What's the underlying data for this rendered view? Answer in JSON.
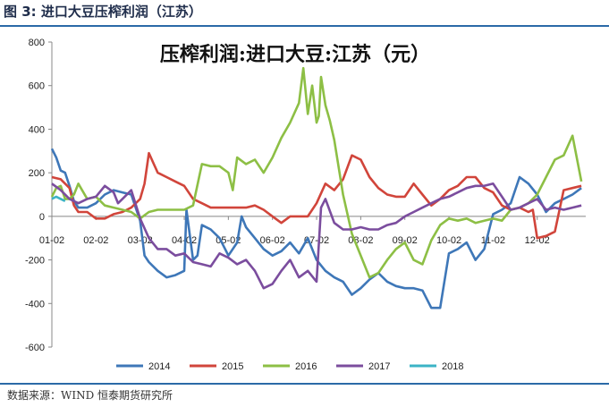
{
  "figure_title": "图 3:  进口大豆压榨利润（江苏）",
  "source": "数据来源：WIND  恒泰期货研究所",
  "chart_data": {
    "type": "line",
    "title": "压榨利润:进口大豆:江苏（元）",
    "xlabel": "",
    "ylabel": "",
    "ylim": [
      -600,
      800
    ],
    "yticks": [
      -600,
      -400,
      -200,
      0,
      200,
      400,
      600,
      800
    ],
    "xlim": [
      0,
      12.1
    ],
    "xticks": [
      {
        "x": 0,
        "label": "01-02"
      },
      {
        "x": 1,
        "label": "02-02"
      },
      {
        "x": 2,
        "label": "03-02"
      },
      {
        "x": 3,
        "label": "04-02"
      },
      {
        "x": 4,
        "label": "05-02"
      },
      {
        "x": 5,
        "label": "06-02"
      },
      {
        "x": 6,
        "label": "07-02"
      },
      {
        "x": 7,
        "label": "08-02"
      },
      {
        "x": 8,
        "label": "09-02"
      },
      {
        "x": 9,
        "label": "10-02"
      },
      {
        "x": 10,
        "label": "11-02"
      },
      {
        "x": 11,
        "label": "12-02"
      }
    ],
    "legend_position": "bottom",
    "grid": false,
    "series": [
      {
        "name": "2014",
        "color": "#3e77b8",
        "x": [
          0.0,
          0.1,
          0.2,
          0.3,
          0.4,
          0.5,
          0.6,
          0.8,
          1.0,
          1.2,
          1.4,
          1.6,
          1.8,
          1.9,
          2.0,
          2.1,
          2.2,
          2.4,
          2.6,
          2.8,
          3.0,
          3.05,
          3.2,
          3.3,
          3.4,
          3.6,
          3.8,
          4.0,
          4.2,
          4.3,
          4.4,
          4.6,
          4.8,
          5.0,
          5.2,
          5.4,
          5.6,
          5.8,
          6.0,
          6.2,
          6.4,
          6.6,
          6.8,
          7.0,
          7.2,
          7.4,
          7.6,
          7.8,
          8.0,
          8.2,
          8.4,
          8.6,
          8.8,
          9.0,
          9.2,
          9.4,
          9.6,
          9.8,
          10.0,
          10.2,
          10.4,
          10.6,
          10.8,
          11.0,
          11.2,
          11.4,
          11.6,
          11.8,
          12.0
        ],
        "y": [
          310,
          270,
          210,
          200,
          140,
          70,
          40,
          40,
          60,
          100,
          120,
          110,
          100,
          40,
          -20,
          -180,
          -210,
          -250,
          -280,
          -270,
          -250,
          30,
          -200,
          -180,
          -40,
          -60,
          -100,
          -180,
          -120,
          0,
          -50,
          -100,
          -150,
          -180,
          -160,
          -120,
          -170,
          -100,
          -200,
          -250,
          -280,
          -300,
          -360,
          -330,
          -290,
          -260,
          -300,
          -320,
          -330,
          -330,
          -340,
          -420,
          -420,
          -170,
          -150,
          -120,
          -200,
          -150,
          10,
          30,
          60,
          180,
          150,
          100,
          20,
          60,
          80,
          100,
          130
        ]
      },
      {
        "name": "2015",
        "color": "#d1453b",
        "x": [
          0.0,
          0.2,
          0.4,
          0.5,
          0.6,
          0.8,
          1.0,
          1.2,
          1.4,
          1.6,
          1.8,
          2.0,
          2.1,
          2.2,
          2.4,
          2.6,
          2.8,
          3.0,
          3.2,
          3.4,
          3.6,
          3.8,
          4.0,
          4.2,
          4.4,
          4.6,
          4.8,
          5.0,
          5.2,
          5.4,
          5.6,
          5.8,
          6.0,
          6.2,
          6.4,
          6.6,
          6.8,
          7.0,
          7.2,
          7.4,
          7.6,
          7.8,
          8.0,
          8.2,
          8.4,
          8.6,
          8.8,
          9.0,
          9.2,
          9.4,
          9.6,
          9.8,
          10.0,
          10.2,
          10.4,
          10.6,
          10.8,
          10.9,
          11.0,
          11.2,
          11.4,
          11.6,
          11.8,
          12.0
        ],
        "y": [
          180,
          170,
          130,
          50,
          20,
          20,
          -10,
          -10,
          10,
          20,
          40,
          80,
          150,
          290,
          200,
          180,
          160,
          140,
          80,
          60,
          40,
          40,
          40,
          40,
          40,
          50,
          30,
          0,
          -30,
          0,
          0,
          0,
          60,
          150,
          120,
          170,
          280,
          260,
          180,
          130,
          100,
          90,
          90,
          150,
          100,
          50,
          80,
          120,
          140,
          180,
          180,
          130,
          110,
          50,
          30,
          40,
          20,
          30,
          -100,
          -90,
          -70,
          120,
          130,
          140
        ]
      },
      {
        "name": "2016",
        "color": "#8dbf45",
        "x": [
          0.0,
          0.1,
          0.2,
          0.3,
          0.4,
          0.5,
          0.6,
          0.8,
          1.0,
          1.2,
          1.4,
          1.6,
          1.8,
          2.0,
          2.2,
          2.4,
          2.6,
          2.8,
          3.0,
          3.2,
          3.4,
          3.6,
          3.8,
          4.0,
          4.1,
          4.2,
          4.4,
          4.6,
          4.8,
          5.0,
          5.2,
          5.4,
          5.6,
          5.7,
          5.8,
          5.9,
          6.0,
          6.05,
          6.1,
          6.2,
          6.3,
          6.4,
          6.6,
          6.8,
          7.0,
          7.2,
          7.4,
          7.6,
          7.8,
          8.0,
          8.2,
          8.4,
          8.6,
          8.8,
          9.0,
          9.2,
          9.4,
          9.6,
          9.8,
          10.0,
          10.2,
          10.4,
          10.6,
          10.8,
          11.0,
          11.2,
          11.4,
          11.6,
          11.8,
          12.0
        ],
        "y": [
          90,
          130,
          140,
          80,
          80,
          100,
          150,
          80,
          90,
          50,
          40,
          30,
          20,
          -10,
          20,
          30,
          30,
          30,
          30,
          50,
          240,
          230,
          230,
          200,
          120,
          270,
          240,
          260,
          200,
          270,
          360,
          430,
          520,
          680,
          470,
          600,
          430,
          460,
          640,
          510,
          440,
          350,
          100,
          -80,
          -180,
          -280,
          -260,
          -200,
          -150,
          -120,
          -200,
          -220,
          -110,
          -40,
          -10,
          -20,
          -10,
          -30,
          -20,
          -10,
          -20,
          30,
          40,
          60,
          100,
          180,
          260,
          280,
          370,
          160
        ]
      },
      {
        "name": "2017",
        "color": "#7b4d9e",
        "x": [
          0.0,
          0.2,
          0.4,
          0.6,
          0.8,
          1.0,
          1.2,
          1.4,
          1.5,
          1.6,
          1.8,
          2.0,
          2.2,
          2.4,
          2.6,
          2.8,
          3.0,
          3.2,
          3.4,
          3.6,
          3.8,
          4.0,
          4.2,
          4.4,
          4.6,
          4.8,
          5.0,
          5.2,
          5.4,
          5.6,
          5.8,
          6.0,
          6.1,
          6.2,
          6.4,
          6.6,
          6.8,
          7.0,
          7.2,
          7.4,
          7.6,
          7.8,
          8.0,
          8.2,
          8.4,
          8.6,
          8.8,
          9.0,
          9.2,
          9.4,
          9.6,
          9.8,
          10.0,
          10.2,
          10.4,
          10.6,
          10.8,
          11.0,
          11.2,
          11.4,
          11.6,
          11.8,
          12.0
        ],
        "y": [
          150,
          120,
          80,
          60,
          80,
          90,
          140,
          110,
          60,
          80,
          120,
          -10,
          -100,
          -150,
          -150,
          -180,
          -170,
          -210,
          -220,
          -230,
          -170,
          -190,
          -220,
          -200,
          -250,
          -330,
          -310,
          -250,
          -200,
          -280,
          -250,
          -300,
          40,
          80,
          -30,
          -60,
          -60,
          -50,
          -60,
          -60,
          -40,
          -30,
          0,
          20,
          40,
          60,
          80,
          90,
          110,
          130,
          140,
          140,
          150,
          90,
          30,
          40,
          60,
          80,
          30,
          40,
          30,
          40,
          50
        ]
      },
      {
        "name": "2018",
        "color": "#3bb3c6",
        "x": [
          0.0,
          0.1,
          0.2,
          0.3
        ],
        "y": [
          80,
          90,
          80,
          70
        ]
      }
    ]
  }
}
